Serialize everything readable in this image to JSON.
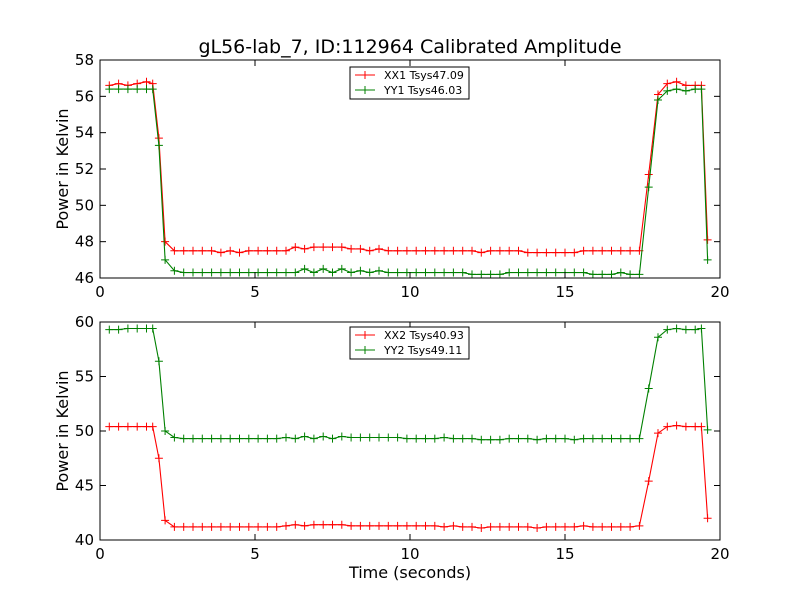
{
  "title": "gL56-lab_7, ID:112964 Calibrated Amplitude",
  "chart_data": [
    {
      "type": "line",
      "title": "gL56-lab_7, ID:112964 Calibrated Amplitude",
      "xlabel": "",
      "ylabel": "Power in Kelvin",
      "xlim": [
        0,
        20
      ],
      "ylim": [
        46,
        58
      ],
      "xticks": [
        "0",
        "5",
        "10",
        "15",
        "20"
      ],
      "yticks": [
        "46",
        "48",
        "50",
        "52",
        "54",
        "56",
        "58"
      ],
      "legend_position": "top-center",
      "x": [
        0.3,
        0.6,
        0.9,
        1.2,
        1.5,
        1.7,
        1.9,
        2.1,
        2.4,
        2.7,
        3.0,
        3.3,
        3.6,
        3.9,
        4.2,
        4.5,
        4.8,
        5.1,
        5.4,
        5.7,
        6.0,
        6.3,
        6.6,
        6.9,
        7.2,
        7.5,
        7.8,
        8.1,
        8.4,
        8.7,
        9.0,
        9.3,
        9.6,
        9.9,
        10.2,
        10.5,
        10.8,
        11.1,
        11.4,
        11.7,
        12.0,
        12.3,
        12.6,
        12.9,
        13.2,
        13.5,
        13.8,
        14.1,
        14.4,
        14.7,
        15.0,
        15.3,
        15.6,
        15.9,
        16.2,
        16.5,
        16.8,
        17.1,
        17.4,
        17.7,
        18.0,
        18.3,
        18.6,
        18.9,
        19.2,
        19.4,
        19.6
      ],
      "series": [
        {
          "name": "XX1 Tsys47.09",
          "color": "#ff0000",
          "values": [
            56.6,
            56.7,
            56.6,
            56.7,
            56.8,
            56.7,
            53.7,
            48.0,
            47.5,
            47.5,
            47.5,
            47.5,
            47.5,
            47.4,
            47.5,
            47.4,
            47.5,
            47.5,
            47.5,
            47.5,
            47.5,
            47.7,
            47.6,
            47.7,
            47.7,
            47.7,
            47.7,
            47.6,
            47.6,
            47.5,
            47.6,
            47.5,
            47.5,
            47.5,
            47.5,
            47.5,
            47.5,
            47.5,
            47.5,
            47.5,
            47.5,
            47.4,
            47.5,
            47.5,
            47.5,
            47.5,
            47.4,
            47.4,
            47.4,
            47.4,
            47.4,
            47.4,
            47.5,
            47.5,
            47.5,
            47.5,
            47.5,
            47.5,
            47.5,
            51.7,
            56.1,
            56.7,
            56.8,
            56.6,
            56.6,
            56.6,
            48.1
          ]
        },
        {
          "name": "YY1 Tsys46.03",
          "color": "#008000",
          "values": [
            56.4,
            56.4,
            56.4,
            56.4,
            56.4,
            56.4,
            53.3,
            47.0,
            46.4,
            46.3,
            46.3,
            46.3,
            46.3,
            46.3,
            46.3,
            46.3,
            46.3,
            46.3,
            46.3,
            46.3,
            46.3,
            46.3,
            46.5,
            46.3,
            46.5,
            46.3,
            46.5,
            46.3,
            46.4,
            46.3,
            46.4,
            46.3,
            46.3,
            46.3,
            46.3,
            46.3,
            46.3,
            46.3,
            46.3,
            46.3,
            46.2,
            46.2,
            46.2,
            46.2,
            46.3,
            46.3,
            46.3,
            46.3,
            46.3,
            46.3,
            46.3,
            46.3,
            46.3,
            46.2,
            46.2,
            46.2,
            46.3,
            46.2,
            46.2,
            51.0,
            55.8,
            56.3,
            56.4,
            56.3,
            56.4,
            56.4,
            47.0
          ]
        }
      ]
    },
    {
      "type": "line",
      "title": "",
      "xlabel": "Time (seconds)",
      "ylabel": "Power in Kelvin",
      "xlim": [
        0,
        20
      ],
      "ylim": [
        40,
        60
      ],
      "xticks": [
        "0",
        "5",
        "10",
        "15",
        "20"
      ],
      "yticks": [
        "40",
        "45",
        "50",
        "55",
        "60"
      ],
      "legend_position": "top-center",
      "x": [
        0.3,
        0.6,
        0.9,
        1.2,
        1.5,
        1.7,
        1.9,
        2.1,
        2.4,
        2.7,
        3.0,
        3.3,
        3.6,
        3.9,
        4.2,
        4.5,
        4.8,
        5.1,
        5.4,
        5.7,
        6.0,
        6.3,
        6.6,
        6.9,
        7.2,
        7.5,
        7.8,
        8.1,
        8.4,
        8.7,
        9.0,
        9.3,
        9.6,
        9.9,
        10.2,
        10.5,
        10.8,
        11.1,
        11.4,
        11.7,
        12.0,
        12.3,
        12.6,
        12.9,
        13.2,
        13.5,
        13.8,
        14.1,
        14.4,
        14.7,
        15.0,
        15.3,
        15.6,
        15.9,
        16.2,
        16.5,
        16.8,
        17.1,
        17.4,
        17.7,
        18.0,
        18.3,
        18.6,
        18.9,
        19.2,
        19.4,
        19.6
      ],
      "series": [
        {
          "name": "XX2 Tsys40.93",
          "color": "#ff0000",
          "values": [
            50.4,
            50.4,
            50.4,
            50.4,
            50.4,
            50.4,
            47.5,
            41.8,
            41.2,
            41.2,
            41.2,
            41.2,
            41.2,
            41.2,
            41.2,
            41.2,
            41.2,
            41.2,
            41.2,
            41.2,
            41.3,
            41.4,
            41.3,
            41.4,
            41.4,
            41.4,
            41.4,
            41.3,
            41.3,
            41.3,
            41.3,
            41.3,
            41.3,
            41.3,
            41.3,
            41.3,
            41.3,
            41.2,
            41.3,
            41.2,
            41.2,
            41.1,
            41.2,
            41.2,
            41.2,
            41.2,
            41.2,
            41.1,
            41.2,
            41.2,
            41.2,
            41.2,
            41.3,
            41.2,
            41.2,
            41.2,
            41.2,
            41.2,
            41.3,
            45.4,
            49.8,
            50.4,
            50.5,
            50.4,
            50.4,
            50.4,
            42.0
          ]
        },
        {
          "name": "YY2 Tsys49.11",
          "color": "#008000",
          "values": [
            59.3,
            59.3,
            59.4,
            59.4,
            59.4,
            59.4,
            56.4,
            50.0,
            49.4,
            49.3,
            49.3,
            49.3,
            49.3,
            49.3,
            49.3,
            49.3,
            49.3,
            49.3,
            49.3,
            49.3,
            49.4,
            49.3,
            49.5,
            49.3,
            49.5,
            49.3,
            49.5,
            49.4,
            49.4,
            49.4,
            49.4,
            49.4,
            49.4,
            49.3,
            49.3,
            49.3,
            49.3,
            49.4,
            49.3,
            49.3,
            49.3,
            49.2,
            49.2,
            49.2,
            49.3,
            49.3,
            49.3,
            49.2,
            49.3,
            49.3,
            49.3,
            49.2,
            49.3,
            49.3,
            49.3,
            49.3,
            49.3,
            49.3,
            49.3,
            53.9,
            58.6,
            59.3,
            59.4,
            59.3,
            59.3,
            59.4,
            50.1
          ]
        }
      ]
    }
  ]
}
